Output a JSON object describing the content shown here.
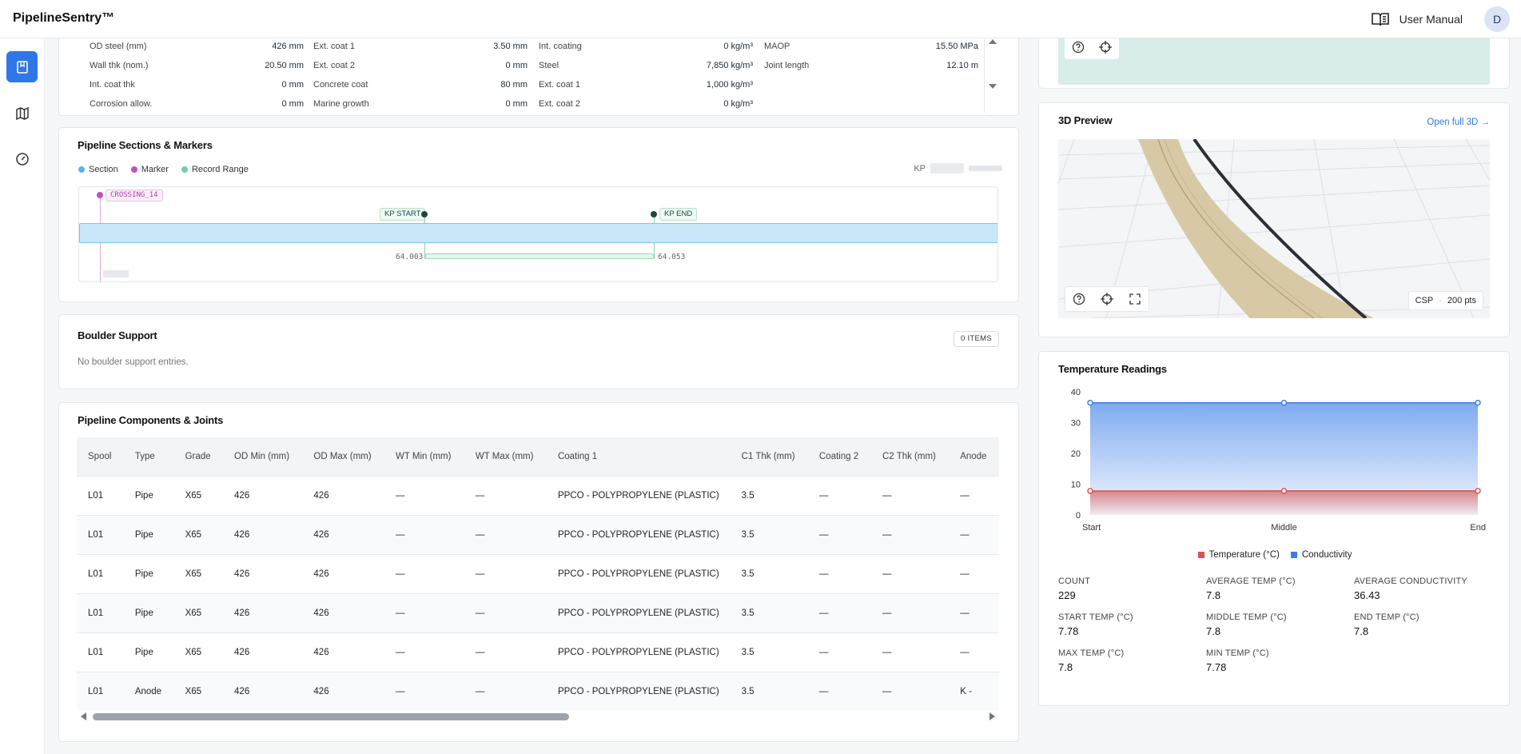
{
  "app": {
    "brand": "PipelineSentry™",
    "user_manual": "User Manual",
    "avatar_initial": "D"
  },
  "properties": {
    "col1": [
      {
        "label": "OD steel (mm)",
        "value": "426 mm"
      },
      {
        "label": "Wall thk (nom.)",
        "value": "20.50 mm"
      },
      {
        "label": "Int. coat thk",
        "value": "0 mm"
      },
      {
        "label": "Corrosion allow.",
        "value": "0 mm"
      }
    ],
    "col2": [
      {
        "label": "Ext. coat 1",
        "value": "3.50 mm"
      },
      {
        "label": "Ext. coat 2",
        "value": "0 mm"
      },
      {
        "label": "Concrete coat",
        "value": "80 mm"
      },
      {
        "label": "Marine growth",
        "value": "0 mm"
      }
    ],
    "col3": [
      {
        "label": "Int. coating",
        "value": "0 kg/m³"
      },
      {
        "label": "Steel",
        "value": "7,850 kg/m³"
      },
      {
        "label": "Ext. coat 1",
        "value": "1,000 kg/m³"
      },
      {
        "label": "Ext. coat 2",
        "value": "0 kg/m³"
      }
    ],
    "col4": [
      {
        "label": "MAOP",
        "value": "15.50 MPa"
      },
      {
        "label": "Joint length",
        "value": "12.10 m"
      }
    ]
  },
  "sections": {
    "title": "Pipeline Sections & Markers",
    "legend": [
      {
        "label": "Section",
        "color": "#5fb3e6"
      },
      {
        "label": "Marker",
        "color": "#c04fc4"
      },
      {
        "label": "Record Range",
        "color": "#6fcfa5"
      }
    ],
    "kp_label": "KP",
    "marker_label": "CROSSING_14",
    "kp_start_label": "KP START",
    "kp_end_label": "KP END",
    "kp_start_value": "64.003",
    "kp_end_value": "64.053"
  },
  "boulder": {
    "title": "Boulder Support",
    "badge": "0 ITEMS",
    "empty": "No boulder support entries."
  },
  "components": {
    "title": "Pipeline Components & Joints",
    "headers": [
      "Spool",
      "Type",
      "Grade",
      "OD Min (mm)",
      "OD Max (mm)",
      "WT Min (mm)",
      "WT Max (mm)",
      "Coating 1",
      "C1 Thk (mm)",
      "Coating 2",
      "C2 Thk (mm)",
      "Anode"
    ],
    "rows": [
      [
        "L01",
        "Pipe",
        "X65",
        "426",
        "426",
        "—",
        "—",
        "PPCO - POLYPROPYLENE (PLASTIC)",
        "3.5",
        "—",
        "—",
        "—"
      ],
      [
        "L01",
        "Pipe",
        "X65",
        "426",
        "426",
        "—",
        "—",
        "PPCO - POLYPROPYLENE (PLASTIC)",
        "3.5",
        "—",
        "—",
        "—"
      ],
      [
        "L01",
        "Pipe",
        "X65",
        "426",
        "426",
        "—",
        "—",
        "PPCO - POLYPROPYLENE (PLASTIC)",
        "3.5",
        "—",
        "—",
        "—"
      ],
      [
        "L01",
        "Pipe",
        "X65",
        "426",
        "426",
        "—",
        "—",
        "PPCO - POLYPROPYLENE (PLASTIC)",
        "3.5",
        "—",
        "—",
        "—"
      ],
      [
        "L01",
        "Pipe",
        "X65",
        "426",
        "426",
        "—",
        "—",
        "PPCO - POLYPROPYLENE (PLASTIC)",
        "3.5",
        "—",
        "—",
        "—"
      ],
      [
        "L01",
        "Anode",
        "X65",
        "426",
        "426",
        "—",
        "—",
        "PPCO - POLYPROPYLENE (PLASTIC)",
        "3.5",
        "—",
        "—",
        "K -"
      ]
    ]
  },
  "preview": {
    "title": "3D Preview",
    "open_link": "Open full 3D →",
    "source": "CSP",
    "separator": "·",
    "points": "200 pts"
  },
  "temperature": {
    "title": "Temperature Readings",
    "stats": [
      {
        "label": "COUNT",
        "value": "229"
      },
      {
        "label": "AVERAGE TEMP (°C)",
        "value": "7.8"
      },
      {
        "label": "AVERAGE CONDUCTIVITY",
        "value": "36.43"
      },
      {
        "label": "START TEMP (°C)",
        "value": "7.78"
      },
      {
        "label": "MIDDLE TEMP (°C)",
        "value": "7.8"
      },
      {
        "label": "END TEMP (°C)",
        "value": "7.8"
      },
      {
        "label": "MAX TEMP (°C)",
        "value": "7.8"
      },
      {
        "label": "MIN TEMP (°C)",
        "value": "7.78"
      }
    ]
  },
  "chart_data": {
    "type": "area",
    "categories": [
      "Start",
      "Middle",
      "End"
    ],
    "series": [
      {
        "name": "Temperature (°C)",
        "values": [
          7.78,
          7.8,
          7.8
        ],
        "color": "#d9534f"
      },
      {
        "name": "Conductivity",
        "values": [
          36.43,
          36.43,
          36.43
        ],
        "color": "#3b7de8"
      }
    ],
    "y_ticks": [
      0,
      10,
      20,
      30,
      40
    ],
    "ylim": [
      0,
      40
    ],
    "legend_position": "bottom"
  }
}
